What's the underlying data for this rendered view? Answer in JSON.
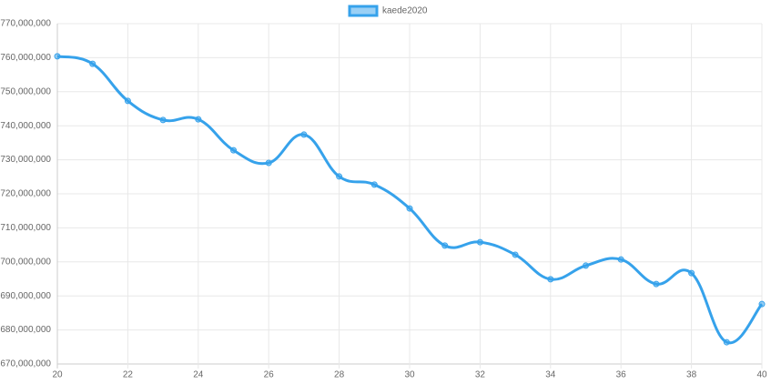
{
  "chart_data": {
    "type": "line",
    "x": [
      20,
      21,
      22,
      23,
      24,
      25,
      26,
      27,
      28,
      29,
      30,
      31,
      32,
      33,
      34,
      35,
      36,
      37,
      38,
      39,
      40
    ],
    "series": [
      {
        "name": "kaede2020",
        "color": "#36a2eb",
        "values": [
          760400000,
          758200000,
          747300000,
          741700000,
          741900000,
          732800000,
          729100000,
          737400000,
          725100000,
          722700000,
          715700000,
          704800000,
          705800000,
          702100000,
          694900000,
          698900000,
          700700000,
          693500000,
          696700000,
          676400000,
          687600000
        ]
      }
    ],
    "xlim": [
      20,
      40
    ],
    "xticks": [
      20,
      22,
      24,
      26,
      28,
      30,
      32,
      34,
      36,
      38,
      40
    ],
    "ylim": [
      670000000,
      770000000
    ],
    "yticks": [
      {
        "value": 670000000,
        "label": "670,000,000"
      },
      {
        "value": 680000000,
        "label": "680,000,000"
      },
      {
        "value": 690000000,
        "label": "690,000,000"
      },
      {
        "value": 700000000,
        "label": "700,000,000"
      },
      {
        "value": 710000000,
        "label": "710,000,000"
      },
      {
        "value": 720000000,
        "label": "720,000,000"
      },
      {
        "value": 730000000,
        "label": "730,000,000"
      },
      {
        "value": 740000000,
        "label": "740,000,000"
      },
      {
        "value": 750000000,
        "label": "750,000,000"
      },
      {
        "value": 760000000,
        "label": "760,000,000"
      },
      {
        "value": 770000000,
        "label": "770,000,000"
      }
    ],
    "grid": true,
    "legend": "top"
  }
}
